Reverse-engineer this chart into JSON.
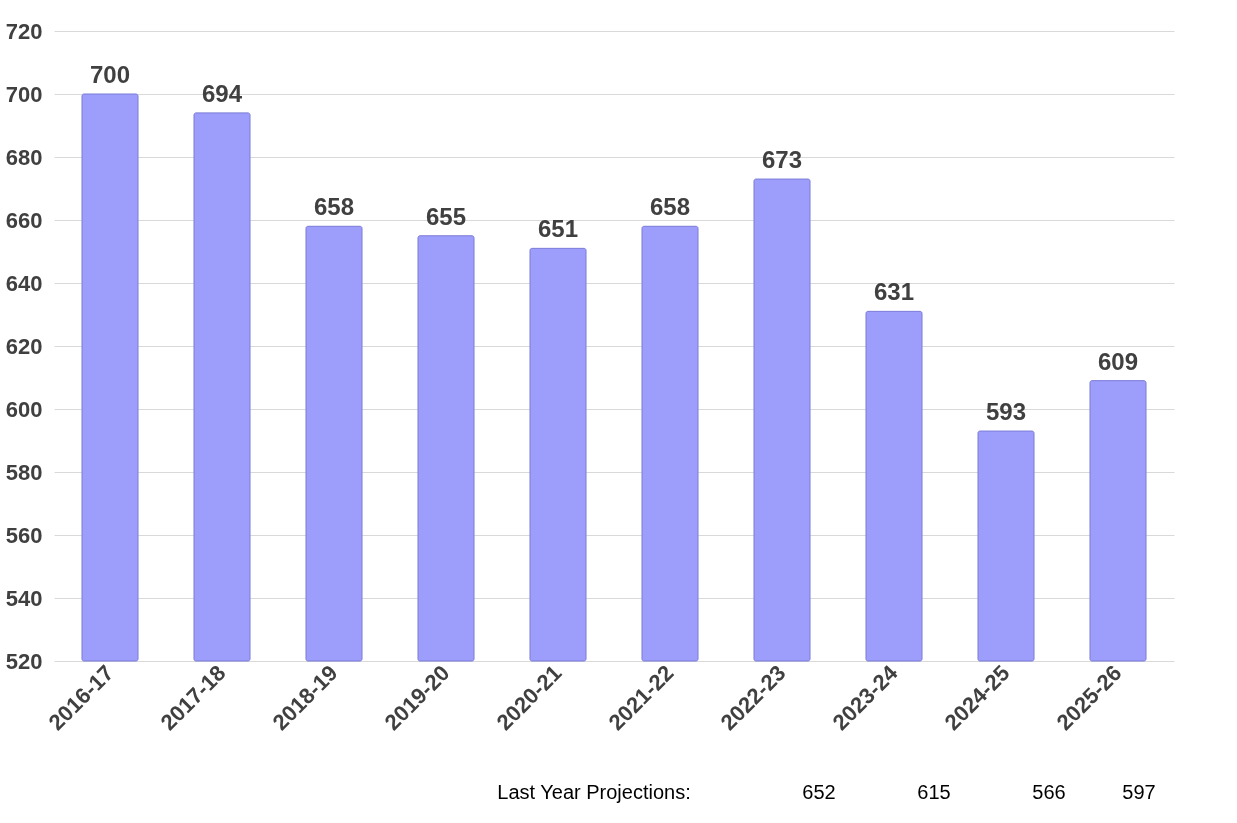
{
  "chart_data": {
    "type": "bar",
    "categories": [
      "2016-17",
      "2017-18",
      "2018-19",
      "2019-20",
      "2020-21",
      "2021-22",
      "2022-23",
      "2023-24",
      "2024-25",
      "2025-26"
    ],
    "values": [
      700,
      694,
      658,
      655,
      651,
      658,
      673,
      631,
      593,
      609
    ],
    "color": "#9d9dfb",
    "ylim": [
      520,
      720
    ],
    "yticks": [
      520,
      540,
      560,
      580,
      600,
      620,
      640,
      660,
      680,
      700,
      720
    ],
    "grid": "y",
    "data_labels": true,
    "annotations": [
      "Last Year Projections:",
      "652",
      "615",
      "566",
      "597"
    ]
  }
}
